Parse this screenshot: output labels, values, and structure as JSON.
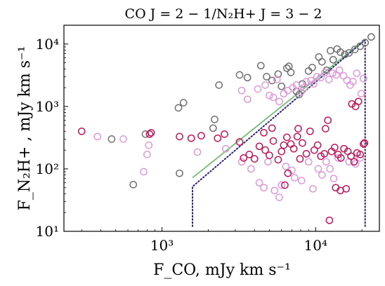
{
  "chart_data": {
    "type": "scatter",
    "title": "CO J = 2 − 1/N₂H+ J = 3 − 2",
    "xlabel": "F_CO, mJy km s⁻¹",
    "ylabel": "F_N₂H+ , mJy km s⁻¹",
    "x_scale": "log",
    "y_scale": "log",
    "xlim": [
      230,
      26000
    ],
    "ylim": [
      10,
      20000
    ],
    "grid": false,
    "x_ticks": [
      {
        "value": 1000,
        "label": "10³"
      },
      {
        "value": 10000,
        "label": "10⁴"
      }
    ],
    "y_ticks": [
      {
        "value": 10,
        "label": "10¹"
      },
      {
        "value": 100,
        "label": "10²"
      },
      {
        "value": 1000,
        "label": "10³"
      },
      {
        "value": 10000,
        "label": "10⁴"
      }
    ],
    "series": [
      {
        "color": "#707070",
        "marker": "open-circle",
        "points": [
          [
            650,
            56
          ],
          [
            470,
            300
          ],
          [
            780,
            360
          ],
          [
            1300,
            85
          ],
          [
            1280,
            950
          ],
          [
            1380,
            1150
          ],
          [
            2150,
            450
          ],
          [
            2200,
            620
          ],
          [
            2350,
            2200
          ],
          [
            3200,
            3200
          ],
          [
            3600,
            2900
          ],
          [
            4400,
            4500
          ],
          [
            4800,
            3000
          ],
          [
            5200,
            2600
          ],
          [
            5700,
            3300
          ],
          [
            6000,
            2100
          ],
          [
            6500,
            4100
          ],
          [
            6700,
            4400
          ],
          [
            6900,
            3500
          ],
          [
            7500,
            1750
          ],
          [
            7800,
            1550
          ],
          [
            8200,
            2300
          ],
          [
            9000,
            3700
          ],
          [
            9500,
            4200
          ],
          [
            10500,
            6200
          ],
          [
            11000,
            5200
          ],
          [
            11800,
            3800
          ],
          [
            12500,
            7800
          ],
          [
            13000,
            5600
          ],
          [
            13800,
            8300
          ],
          [
            14500,
            7400
          ],
          [
            15500,
            6800
          ],
          [
            16500,
            7200
          ],
          [
            18000,
            8200
          ],
          [
            19500,
            9200
          ],
          [
            21000,
            10500
          ],
          [
            23000,
            13000
          ]
        ]
      },
      {
        "color": "#dd99d9",
        "marker": "open-circle",
        "points": [
          [
            380,
            330
          ],
          [
            560,
            300
          ],
          [
            800,
            170
          ],
          [
            760,
            90
          ],
          [
            820,
            240
          ],
          [
            1700,
            185
          ],
          [
            2600,
            210
          ],
          [
            3300,
            1800
          ],
          [
            3600,
            1300
          ],
          [
            4200,
            1900
          ],
          [
            4700,
            2200
          ],
          [
            5000,
            1500
          ],
          [
            5300,
            1400
          ],
          [
            5600,
            2700
          ],
          [
            5800,
            1200
          ],
          [
            6200,
            1600
          ],
          [
            6600,
            1800
          ],
          [
            7100,
            2000
          ],
          [
            7500,
            2200
          ],
          [
            8000,
            1700
          ],
          [
            8400,
            2000
          ],
          [
            8700,
            2500
          ],
          [
            9300,
            2600
          ],
          [
            9700,
            2300
          ],
          [
            10200,
            3000
          ],
          [
            10800,
            2900
          ],
          [
            11500,
            3500
          ],
          [
            12200,
            2700
          ],
          [
            12900,
            3400
          ],
          [
            13600,
            3200
          ],
          [
            14300,
            3800
          ],
          [
            15200,
            3100
          ],
          [
            16000,
            2600
          ],
          [
            16800,
            2200
          ],
          [
            17500,
            2500
          ],
          [
            18500,
            3400
          ],
          [
            19800,
            1600
          ],
          [
            20500,
            2800
          ],
          [
            3300,
            130
          ],
          [
            3800,
            100
          ],
          [
            4300,
            60
          ],
          [
            4900,
            130
          ],
          [
            5400,
            45
          ],
          [
            5800,
            35
          ],
          [
            6400,
            110
          ],
          [
            7000,
            95
          ],
          [
            7300,
            72
          ],
          [
            8100,
            65
          ],
          [
            9000,
            130
          ],
          [
            9600,
            48
          ],
          [
            10400,
            100
          ],
          [
            11000,
            80
          ],
          [
            11700,
            130
          ],
          [
            12400,
            100
          ],
          [
            13100,
            70
          ],
          [
            14000,
            150
          ],
          [
            16500,
            130
          ],
          [
            18200,
            120
          ],
          [
            19500,
            150
          ],
          [
            4600,
            50
          ],
          [
            6000,
            55
          ]
        ]
      },
      {
        "color": "#c0185a",
        "marker": "open-circle",
        "points": [
          [
            300,
            400
          ],
          [
            830,
            360
          ],
          [
            850,
            380
          ],
          [
            1300,
            330
          ],
          [
            1550,
            310
          ],
          [
            1800,
            340
          ],
          [
            2300,
            310
          ],
          [
            2550,
            360
          ],
          [
            3200,
            270
          ],
          [
            3400,
            150
          ],
          [
            3700,
            170
          ],
          [
            4000,
            145
          ],
          [
            4300,
            230
          ],
          [
            4700,
            200
          ],
          [
            5000,
            165
          ],
          [
            5300,
            280
          ],
          [
            5700,
            140
          ],
          [
            6000,
            190
          ],
          [
            6200,
            240
          ],
          [
            6500,
            320
          ],
          [
            6900,
            250
          ],
          [
            7200,
            210
          ],
          [
            7600,
            330
          ],
          [
            7900,
            145
          ],
          [
            8200,
            260
          ],
          [
            8700,
            175
          ],
          [
            9200,
            400
          ],
          [
            9800,
            200
          ],
          [
            10300,
            240
          ],
          [
            10800,
            160
          ],
          [
            11400,
            175
          ],
          [
            12000,
            600
          ],
          [
            12700,
            190
          ],
          [
            13300,
            220
          ],
          [
            14000,
            170
          ],
          [
            14600,
            150
          ],
          [
            15300,
            210
          ],
          [
            16200,
            190
          ],
          [
            17000,
            160
          ],
          [
            17800,
            130
          ],
          [
            18600,
            180
          ],
          [
            19500,
            170
          ],
          [
            20500,
            250
          ],
          [
            20800,
            260
          ],
          [
            6300,
            55
          ],
          [
            6600,
            85
          ],
          [
            11600,
            440
          ],
          [
            13500,
            50
          ],
          [
            14500,
            45
          ],
          [
            15800,
            48
          ],
          [
            12300,
            15
          ],
          [
            17200,
            1100
          ],
          [
            18200,
            1000
          ],
          [
            19000,
            1200
          ],
          [
            7700,
            440
          ],
          [
            5200,
            450
          ],
          [
            4600,
            380
          ]
        ]
      }
    ],
    "lines": [
      {
        "color": "#7fc07f",
        "style": "solid",
        "points": [
          [
            1580,
            72
          ],
          [
            21000,
            11800
          ]
        ]
      },
      {
        "color": "#2a1f80",
        "style": "dotted",
        "points": [
          [
            1580,
            12
          ],
          [
            1580,
            52
          ],
          [
            21000,
            11600
          ],
          [
            21000,
            12
          ]
        ]
      }
    ]
  }
}
